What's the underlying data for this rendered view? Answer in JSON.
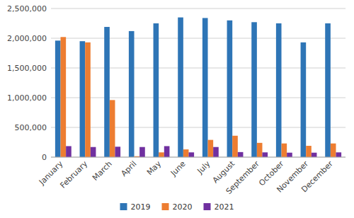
{
  "chart_data": {
    "type": "bar",
    "categories": [
      "January",
      "February",
      "March",
      "April",
      "May",
      "June",
      "July",
      "August",
      "September",
      "October",
      "November",
      "December"
    ],
    "series": [
      {
        "name": "2019",
        "color": "#2e75b6",
        "values": [
          1960000,
          1950000,
          2190000,
          2120000,
          2250000,
          2350000,
          2340000,
          2300000,
          2270000,
          2250000,
          1930000,
          2250000
        ]
      },
      {
        "name": "2020",
        "color": "#ed7d31",
        "values": [
          2020000,
          1930000,
          960000,
          15000,
          80000,
          130000,
          290000,
          360000,
          240000,
          230000,
          190000,
          230000
        ]
      },
      {
        "name": "2021",
        "color": "#7030a0",
        "values": [
          185000,
          170000,
          175000,
          170000,
          185000,
          80000,
          170000,
          85000,
          80000,
          75000,
          75000,
          80000
        ]
      }
    ],
    "ylim": [
      0,
      2500000
    ],
    "yticks": [
      0,
      {
        "value": 500000,
        "label": "500,000"
      },
      {
        "value": 1000000,
        "label": "1,000,000"
      },
      {
        "value": 1500000,
        "label": "1,500,000"
      },
      {
        "value": 2000000,
        "label": "2,000,000"
      },
      {
        "value": 2500000,
        "label": "2,500,000"
      }
    ],
    "grid": true,
    "legend": "bottom"
  }
}
